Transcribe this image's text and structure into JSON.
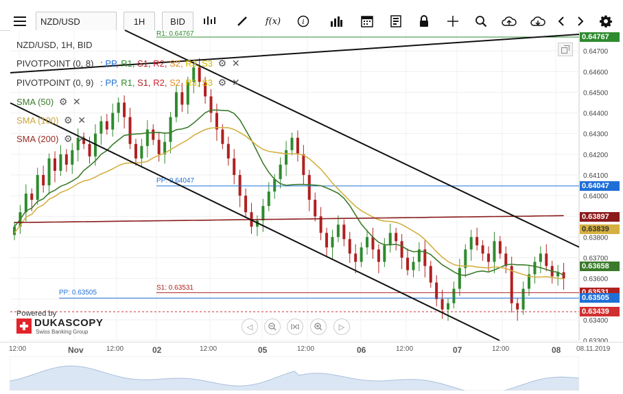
{
  "toolbar": {
    "symbol": "NZD/USD",
    "timeframe": "1H",
    "side": "BID",
    "icons": [
      "menu-icon",
      "candles-icon",
      "draw-icon",
      "function-icon",
      "info-icon",
      "bars-icon",
      "calendar-icon",
      "report-icon",
      "lock-icon",
      "crosshair-icon",
      "zoom-icon",
      "upload-icon",
      "download-icon",
      "prev-icon",
      "next-icon",
      "settings-icon"
    ]
  },
  "legend": {
    "title": "NZD/USD, 1H, BID",
    "pivot1": {
      "label": "PIVOTPOINT (0, 8)",
      "levels": [
        "PP,",
        "R1,",
        "S1,",
        "R2,",
        "S2,",
        "R3,",
        "S3"
      ]
    },
    "pivot2": {
      "label": "PIVOTPOINT (0, 9)",
      "levels": [
        "PP,",
        "R1,",
        "S1,",
        "R2,",
        "S2,",
        "R3,",
        "S3"
      ]
    },
    "sma50": "SMA (50)",
    "sma100": "SMA (100)",
    "sma200": "SMA (200)",
    "colors": {
      "pp": "#1f6fd6",
      "r1": "#2a8a2a",
      "s1": "#b02020",
      "r2": "#d0202a",
      "s2": "#e08a20",
      "r3": "#e0c020",
      "s3": "#e0c020"
    }
  },
  "top_label": "R1: 0.64767",
  "pp_label_1": "PP: 0.64047",
  "pp_label_2": "PP: 0.63505",
  "s1_label": "S1: 0.63531",
  "brand": {
    "powered": "Powered by",
    "name": "DUKASCOPY",
    "sub": "Swiss Banking Group"
  },
  "price_tags": [
    {
      "value": "0.64767",
      "color": "#2e8b2e"
    },
    {
      "value": "0.64047",
      "color": "#1f6fd6"
    },
    {
      "value": "0.63897",
      "color": "#8b1a1a"
    },
    {
      "value": "0.63839",
      "color": "#d4b040",
      "text_color": "#333"
    },
    {
      "value": "0.63658",
      "color": "#3a7a2a"
    },
    {
      "value": "0.63531",
      "color": "#b02020"
    },
    {
      "value": "0.63505",
      "color": "#1f6fd6"
    },
    {
      "value": "0.63439",
      "color": "#d03030"
    }
  ],
  "x_labels": [
    "12:00",
    "Nov",
    "12:00",
    "02",
    "12:00",
    "05",
    "12:00",
    "06",
    "12:00",
    "07",
    "12:00",
    "08",
    "08.11.2019"
  ],
  "chart_data": {
    "type": "candlestick",
    "symbol": "NZD/USD",
    "timeframe": "1H",
    "ylim": [
      0.633,
      0.648
    ],
    "y_ticks": [
      "0.64700",
      "0.64600",
      "0.64500",
      "0.64400",
      "0.64300",
      "0.64200",
      "0.64100",
      "0.64000",
      "0.63900",
      "0.63800",
      "0.63700",
      "0.63600",
      "0.63500",
      "0.63400",
      "0.63300"
    ],
    "levels": [
      {
        "name": "R1",
        "value": 0.64767
      },
      {
        "name": "PP",
        "value": 0.64047
      },
      {
        "name": "SMA (200)",
        "value": 0.63897
      },
      {
        "name": "SMA (100)",
        "value": 0.63839
      },
      {
        "name": "SMA (50)",
        "value": 0.63658
      },
      {
        "name": "S1",
        "value": 0.63531
      },
      {
        "name": "PP",
        "value": 0.63505
      },
      {
        "name": "last",
        "value": 0.63439
      }
    ],
    "closes": [
      0.6385,
      0.6392,
      0.6401,
      0.6398,
      0.641,
      0.6405,
      0.6418,
      0.6412,
      0.642,
      0.6415,
      0.6422,
      0.6428,
      0.6425,
      0.6419,
      0.643,
      0.6436,
      0.6432,
      0.644,
      0.6445,
      0.6438,
      0.6425,
      0.6418,
      0.6424,
      0.6432,
      0.6427,
      0.642,
      0.6426,
      0.6438,
      0.645,
      0.6444,
      0.6455,
      0.6462,
      0.6455,
      0.6448,
      0.644,
      0.6432,
      0.6425,
      0.6418,
      0.641,
      0.64,
      0.6392,
      0.6385,
      0.6388,
      0.6395,
      0.6402,
      0.6408,
      0.6415,
      0.6422,
      0.6428,
      0.642,
      0.641,
      0.6398,
      0.639,
      0.6382,
      0.6375,
      0.638,
      0.6386,
      0.6379,
      0.6372,
      0.6368,
      0.6375,
      0.638,
      0.6374,
      0.6368,
      0.6376,
      0.6382,
      0.6378,
      0.637,
      0.6364,
      0.6368,
      0.6374,
      0.6366,
      0.6358,
      0.635,
      0.6345,
      0.6348,
      0.6355,
      0.6365,
      0.6374,
      0.638,
      0.6376,
      0.6372,
      0.6368,
      0.6378,
      0.6372,
      0.6366,
      0.6348,
      0.6345,
      0.6355,
      0.6362,
      0.6368,
      0.6372,
      0.6366,
      0.6361,
      0.6363,
      0.636
    ]
  }
}
